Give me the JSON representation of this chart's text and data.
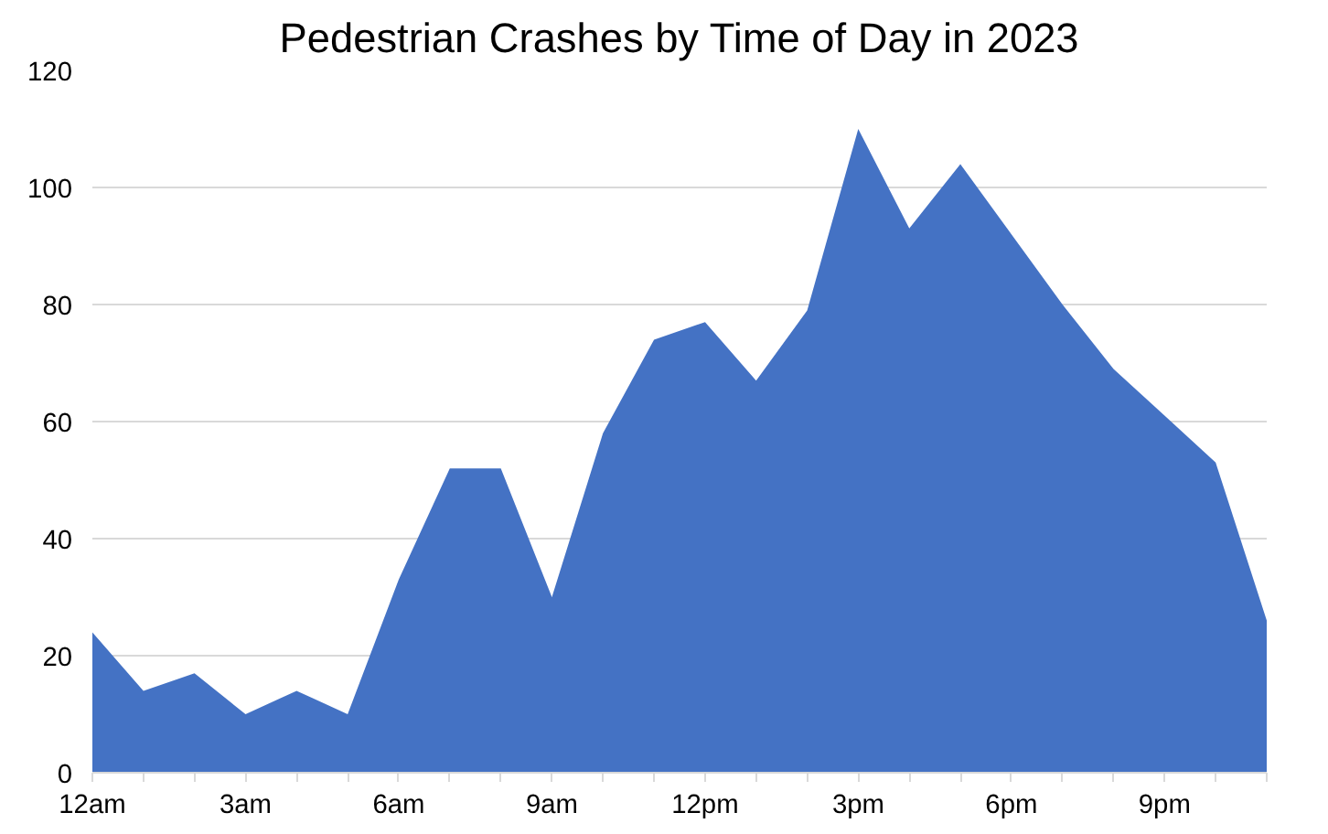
{
  "chart_data": {
    "type": "area",
    "title": "Pedestrian Crashes by Time of Day in 2023",
    "categories": [
      "12am",
      null,
      null,
      "3am",
      null,
      null,
      "6am",
      null,
      null,
      "9am",
      null,
      null,
      "12pm",
      null,
      null,
      "3pm",
      null,
      null,
      "6pm",
      null,
      null,
      "9pm",
      null,
      null
    ],
    "series": [
      {
        "color": "#4472c4",
        "values": [
          24,
          14,
          17,
          10,
          14,
          10,
          33,
          52,
          52,
          30,
          58,
          74,
          77,
          67,
          79,
          110,
          93,
          104,
          92,
          80,
          69,
          61,
          53,
          26
        ]
      }
    ],
    "ylim": [
      0,
      120
    ],
    "yticks": [
      0,
      20,
      40,
      60,
      80,
      100,
      120
    ],
    "grid": "y"
  }
}
